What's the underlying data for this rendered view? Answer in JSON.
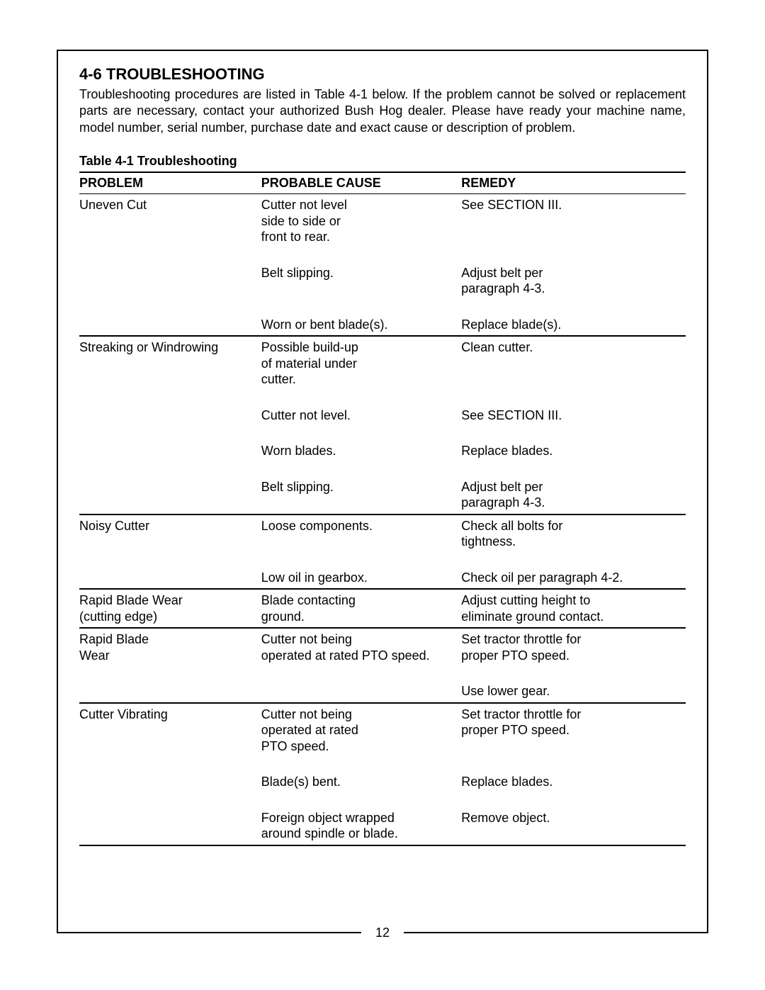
{
  "section": {
    "title": "4-6 TROUBLESHOOTING",
    "intro": "Troubleshooting procedures are listed in Table 4-1 below. If the problem cannot be solved or replacement parts are necessary, contact your authorized Bush Hog dealer. Please have ready your machine name, model number, serial number, purchase date and exact cause or description of problem."
  },
  "table": {
    "caption": "Table 4-1 Troubleshooting",
    "headers": {
      "problem": "PROBLEM",
      "cause": "PROBABLE CAUSE",
      "remedy": "REMEDY"
    },
    "groups": [
      {
        "problem": "Uneven Cut",
        "rows": [
          {
            "cause": "Cutter not level\nside to side or\nfront to rear.",
            "remedy": "See SECTION III."
          },
          {
            "cause": "Belt slipping.",
            "remedy": "Adjust belt per\nparagraph 4-3."
          },
          {
            "cause": "Worn or bent blade(s).",
            "remedy": "Replace blade(s)."
          }
        ]
      },
      {
        "problem": "Streaking or Windrowing",
        "rows": [
          {
            "cause": "Possible build-up\nof material under\ncutter.",
            "remedy": "Clean cutter."
          },
          {
            "cause": "Cutter not level.",
            "remedy": "See SECTION III."
          },
          {
            "cause": "Worn blades.",
            "remedy": "Replace blades."
          },
          {
            "cause": "Belt slipping.",
            "remedy": "Adjust belt per\nparagraph 4-3."
          }
        ]
      },
      {
        "problem": "Noisy Cutter",
        "rows": [
          {
            "cause": "Loose components.",
            "remedy": "Check all bolts for\ntightness."
          },
          {
            "cause": "Low oil in gearbox.",
            "remedy": "Check oil per paragraph 4-2."
          }
        ]
      },
      {
        "problem": "Rapid Blade Wear\n(cutting edge)",
        "rows": [
          {
            "cause": "Blade contacting\nground.",
            "remedy": "Adjust cutting height to\neliminate ground contact."
          }
        ]
      },
      {
        "problem": "Rapid Blade\nWear",
        "rows": [
          {
            "cause": "Cutter not being\noperated at rated PTO speed.",
            "remedy": "Set tractor throttle for\nproper PTO speed."
          },
          {
            "cause": "",
            "remedy": "Use lower gear."
          }
        ]
      },
      {
        "problem": "Cutter Vibrating",
        "rows": [
          {
            "cause": "Cutter not being\noperated at rated\nPTO speed.",
            "remedy": "Set tractor throttle for\nproper PTO speed."
          },
          {
            "cause": "Blade(s) bent.",
            "remedy": "Replace blades."
          },
          {
            "cause": "Foreign object wrapped\naround spindle or blade.",
            "remedy": "Remove object."
          }
        ]
      }
    ]
  },
  "page_number": "12",
  "styles": {
    "text_color": "#000000",
    "background_color": "#ffffff",
    "border_color": "#000000",
    "font_family": "Arial, Helvetica, sans-serif",
    "title_fontsize": 22,
    "body_fontsize": 18
  }
}
